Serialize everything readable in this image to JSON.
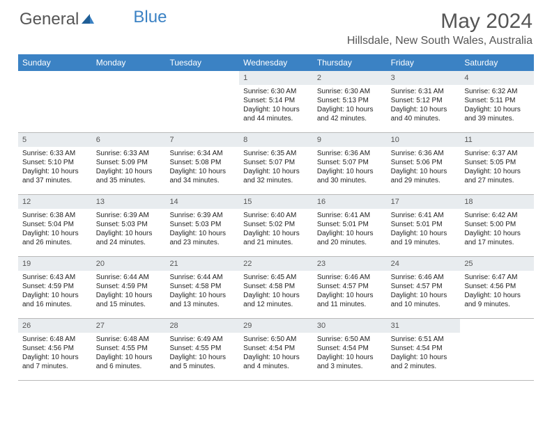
{
  "brand": {
    "part1": "General",
    "part2": "Blue"
  },
  "title": "May 2024",
  "location": "Hillsdale, New South Wales, Australia",
  "colors": {
    "header_bg": "#3b82c4",
    "header_text": "#ffffff",
    "daynum_bg": "#e8ecef",
    "text": "#333333",
    "border": "#b8b8b8"
  },
  "day_names": [
    "Sunday",
    "Monday",
    "Tuesday",
    "Wednesday",
    "Thursday",
    "Friday",
    "Saturday"
  ],
  "weeks": [
    [
      {
        "n": "",
        "sr": "",
        "ss": "",
        "dl": ""
      },
      {
        "n": "",
        "sr": "",
        "ss": "",
        "dl": ""
      },
      {
        "n": "",
        "sr": "",
        "ss": "",
        "dl": ""
      },
      {
        "n": "1",
        "sr": "Sunrise: 6:30 AM",
        "ss": "Sunset: 5:14 PM",
        "dl": "Daylight: 10 hours and 44 minutes."
      },
      {
        "n": "2",
        "sr": "Sunrise: 6:30 AM",
        "ss": "Sunset: 5:13 PM",
        "dl": "Daylight: 10 hours and 42 minutes."
      },
      {
        "n": "3",
        "sr": "Sunrise: 6:31 AM",
        "ss": "Sunset: 5:12 PM",
        "dl": "Daylight: 10 hours and 40 minutes."
      },
      {
        "n": "4",
        "sr": "Sunrise: 6:32 AM",
        "ss": "Sunset: 5:11 PM",
        "dl": "Daylight: 10 hours and 39 minutes."
      }
    ],
    [
      {
        "n": "5",
        "sr": "Sunrise: 6:33 AM",
        "ss": "Sunset: 5:10 PM",
        "dl": "Daylight: 10 hours and 37 minutes."
      },
      {
        "n": "6",
        "sr": "Sunrise: 6:33 AM",
        "ss": "Sunset: 5:09 PM",
        "dl": "Daylight: 10 hours and 35 minutes."
      },
      {
        "n": "7",
        "sr": "Sunrise: 6:34 AM",
        "ss": "Sunset: 5:08 PM",
        "dl": "Daylight: 10 hours and 34 minutes."
      },
      {
        "n": "8",
        "sr": "Sunrise: 6:35 AM",
        "ss": "Sunset: 5:07 PM",
        "dl": "Daylight: 10 hours and 32 minutes."
      },
      {
        "n": "9",
        "sr": "Sunrise: 6:36 AM",
        "ss": "Sunset: 5:07 PM",
        "dl": "Daylight: 10 hours and 30 minutes."
      },
      {
        "n": "10",
        "sr": "Sunrise: 6:36 AM",
        "ss": "Sunset: 5:06 PM",
        "dl": "Daylight: 10 hours and 29 minutes."
      },
      {
        "n": "11",
        "sr": "Sunrise: 6:37 AM",
        "ss": "Sunset: 5:05 PM",
        "dl": "Daylight: 10 hours and 27 minutes."
      }
    ],
    [
      {
        "n": "12",
        "sr": "Sunrise: 6:38 AM",
        "ss": "Sunset: 5:04 PM",
        "dl": "Daylight: 10 hours and 26 minutes."
      },
      {
        "n": "13",
        "sr": "Sunrise: 6:39 AM",
        "ss": "Sunset: 5:03 PM",
        "dl": "Daylight: 10 hours and 24 minutes."
      },
      {
        "n": "14",
        "sr": "Sunrise: 6:39 AM",
        "ss": "Sunset: 5:03 PM",
        "dl": "Daylight: 10 hours and 23 minutes."
      },
      {
        "n": "15",
        "sr": "Sunrise: 6:40 AM",
        "ss": "Sunset: 5:02 PM",
        "dl": "Daylight: 10 hours and 21 minutes."
      },
      {
        "n": "16",
        "sr": "Sunrise: 6:41 AM",
        "ss": "Sunset: 5:01 PM",
        "dl": "Daylight: 10 hours and 20 minutes."
      },
      {
        "n": "17",
        "sr": "Sunrise: 6:41 AM",
        "ss": "Sunset: 5:01 PM",
        "dl": "Daylight: 10 hours and 19 minutes."
      },
      {
        "n": "18",
        "sr": "Sunrise: 6:42 AM",
        "ss": "Sunset: 5:00 PM",
        "dl": "Daylight: 10 hours and 17 minutes."
      }
    ],
    [
      {
        "n": "19",
        "sr": "Sunrise: 6:43 AM",
        "ss": "Sunset: 4:59 PM",
        "dl": "Daylight: 10 hours and 16 minutes."
      },
      {
        "n": "20",
        "sr": "Sunrise: 6:44 AM",
        "ss": "Sunset: 4:59 PM",
        "dl": "Daylight: 10 hours and 15 minutes."
      },
      {
        "n": "21",
        "sr": "Sunrise: 6:44 AM",
        "ss": "Sunset: 4:58 PM",
        "dl": "Daylight: 10 hours and 13 minutes."
      },
      {
        "n": "22",
        "sr": "Sunrise: 6:45 AM",
        "ss": "Sunset: 4:58 PM",
        "dl": "Daylight: 10 hours and 12 minutes."
      },
      {
        "n": "23",
        "sr": "Sunrise: 6:46 AM",
        "ss": "Sunset: 4:57 PM",
        "dl": "Daylight: 10 hours and 11 minutes."
      },
      {
        "n": "24",
        "sr": "Sunrise: 6:46 AM",
        "ss": "Sunset: 4:57 PM",
        "dl": "Daylight: 10 hours and 10 minutes."
      },
      {
        "n": "25",
        "sr": "Sunrise: 6:47 AM",
        "ss": "Sunset: 4:56 PM",
        "dl": "Daylight: 10 hours and 9 minutes."
      }
    ],
    [
      {
        "n": "26",
        "sr": "Sunrise: 6:48 AM",
        "ss": "Sunset: 4:56 PM",
        "dl": "Daylight: 10 hours and 7 minutes."
      },
      {
        "n": "27",
        "sr": "Sunrise: 6:48 AM",
        "ss": "Sunset: 4:55 PM",
        "dl": "Daylight: 10 hours and 6 minutes."
      },
      {
        "n": "28",
        "sr": "Sunrise: 6:49 AM",
        "ss": "Sunset: 4:55 PM",
        "dl": "Daylight: 10 hours and 5 minutes."
      },
      {
        "n": "29",
        "sr": "Sunrise: 6:50 AM",
        "ss": "Sunset: 4:54 PM",
        "dl": "Daylight: 10 hours and 4 minutes."
      },
      {
        "n": "30",
        "sr": "Sunrise: 6:50 AM",
        "ss": "Sunset: 4:54 PM",
        "dl": "Daylight: 10 hours and 3 minutes."
      },
      {
        "n": "31",
        "sr": "Sunrise: 6:51 AM",
        "ss": "Sunset: 4:54 PM",
        "dl": "Daylight: 10 hours and 2 minutes."
      },
      {
        "n": "",
        "sr": "",
        "ss": "",
        "dl": ""
      }
    ]
  ]
}
